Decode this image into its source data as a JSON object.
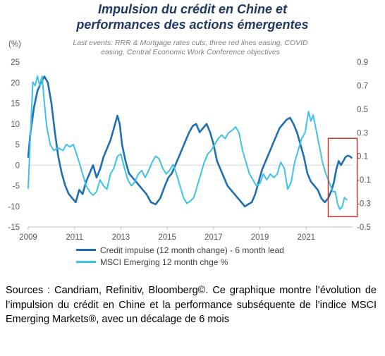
{
  "chart_data": {
    "type": "line",
    "title": [
      "Impulsion du crédit en Chine et",
      "performances des actions émergentes"
    ],
    "subtitle": [
      "Last events: RRR & Mortgage rates cuts, three red lines easing, COVID",
      "easing, Central Economic Work Conference objectives"
    ],
    "y_unit_label": "(%)",
    "ylim_left": [
      -15,
      25
    ],
    "yticks_left": [
      "25",
      "20",
      "15",
      "10",
      "5",
      "0",
      "-5",
      "-10",
      "-15"
    ],
    "ylim_right": [
      -0.5,
      0.9
    ],
    "yticks_right": [
      "0.9",
      "0.7",
      "0.5",
      "0.3",
      "0.1",
      "-0.1",
      "-0.3",
      "-0.5"
    ],
    "xlim": [
      2009,
      2023
    ],
    "xticks": [
      "2009",
      "2011",
      "2013",
      "2015",
      "2017",
      "2019",
      "2021"
    ],
    "grid": false,
    "zero_line": true,
    "highlight_box": {
      "x0": 2021.95,
      "x1": 2023.2,
      "y0_left": -12.5,
      "y1_left": 6.5,
      "color": "#c0392b"
    },
    "series": [
      {
        "name": "Credit impulse (12 month change) - 6 month lead",
        "axis": "left",
        "color": "#1f6fb2",
        "points": [
          [
            2009.0,
            2
          ],
          [
            2009.1,
            8
          ],
          [
            2009.25,
            14
          ],
          [
            2009.4,
            18
          ],
          [
            2009.55,
            20
          ],
          [
            2009.7,
            21.5
          ],
          [
            2009.85,
            20
          ],
          [
            2010.0,
            15
          ],
          [
            2010.15,
            8
          ],
          [
            2010.3,
            2
          ],
          [
            2010.45,
            -2
          ],
          [
            2010.6,
            -5
          ],
          [
            2010.75,
            -7
          ],
          [
            2010.9,
            -8
          ],
          [
            2011.05,
            -9
          ],
          [
            2011.2,
            -6
          ],
          [
            2011.35,
            -7
          ],
          [
            2011.5,
            -4
          ],
          [
            2011.65,
            -2
          ],
          [
            2011.8,
            0
          ],
          [
            2011.95,
            -3
          ],
          [
            2012.1,
            -1
          ],
          [
            2012.25,
            2
          ],
          [
            2012.4,
            4
          ],
          [
            2012.55,
            6
          ],
          [
            2012.7,
            9
          ],
          [
            2012.85,
            12
          ],
          [
            2012.95,
            10
          ],
          [
            2013.05,
            5
          ],
          [
            2013.2,
            1
          ],
          [
            2013.35,
            -2
          ],
          [
            2013.5,
            -3
          ],
          [
            2013.65,
            -4
          ],
          [
            2013.8,
            -5
          ],
          [
            2013.95,
            -6
          ],
          [
            2014.1,
            -7
          ],
          [
            2014.3,
            -9
          ],
          [
            2014.5,
            -9.5
          ],
          [
            2014.7,
            -8
          ],
          [
            2014.9,
            -5
          ],
          [
            2015.05,
            -3
          ],
          [
            2015.2,
            -2
          ],
          [
            2015.35,
            0
          ],
          [
            2015.5,
            2
          ],
          [
            2015.65,
            4
          ],
          [
            2015.8,
            6
          ],
          [
            2015.95,
            8
          ],
          [
            2016.1,
            9.5
          ],
          [
            2016.25,
            10
          ],
          [
            2016.4,
            8
          ],
          [
            2016.55,
            9
          ],
          [
            2016.7,
            10
          ],
          [
            2016.85,
            8
          ],
          [
            2017.0,
            5
          ],
          [
            2017.15,
            1
          ],
          [
            2017.3,
            -1
          ],
          [
            2017.45,
            -3
          ],
          [
            2017.6,
            -5
          ],
          [
            2017.75,
            -6
          ],
          [
            2017.9,
            -7
          ],
          [
            2018.05,
            -8
          ],
          [
            2018.2,
            -9
          ],
          [
            2018.35,
            -10
          ],
          [
            2018.5,
            -9.5
          ],
          [
            2018.65,
            -9
          ],
          [
            2018.8,
            -7
          ],
          [
            2018.95,
            -4
          ],
          [
            2019.1,
            -1
          ],
          [
            2019.25,
            1
          ],
          [
            2019.4,
            3
          ],
          [
            2019.55,
            5
          ],
          [
            2019.7,
            7
          ],
          [
            2019.85,
            9
          ],
          [
            2020.0,
            10
          ],
          [
            2020.15,
            11
          ],
          [
            2020.3,
            11.5
          ],
          [
            2020.45,
            10
          ],
          [
            2020.6,
            8
          ],
          [
            2020.75,
            5
          ],
          [
            2020.9,
            2
          ],
          [
            2021.05,
            -2
          ],
          [
            2021.2,
            -4
          ],
          [
            2021.35,
            -5
          ],
          [
            2021.5,
            -6
          ],
          [
            2021.65,
            -8
          ],
          [
            2021.8,
            -9
          ],
          [
            2021.95,
            -8
          ],
          [
            2022.1,
            -6
          ],
          [
            2022.2,
            -4
          ],
          [
            2022.3,
            -1
          ],
          [
            2022.4,
            1
          ],
          [
            2022.5,
            0
          ],
          [
            2022.6,
            1
          ],
          [
            2022.7,
            2
          ],
          [
            2022.8,
            2.3
          ],
          [
            2022.9,
            2.1
          ],
          [
            2022.95,
            1.8
          ]
        ]
      },
      {
        "name": "MSCI Emerging 12 month chge %",
        "axis": "right",
        "color": "#3ec1ea",
        "points": [
          [
            2009.0,
            -0.17
          ],
          [
            2009.1,
            0.3
          ],
          [
            2009.2,
            0.73
          ],
          [
            2009.3,
            0.7
          ],
          [
            2009.4,
            0.78
          ],
          [
            2009.5,
            0.7
          ],
          [
            2009.6,
            0.78
          ],
          [
            2009.7,
            0.55
          ],
          [
            2009.8,
            0.35
          ],
          [
            2009.95,
            0.2
          ],
          [
            2010.1,
            0.15
          ],
          [
            2010.3,
            0.17
          ],
          [
            2010.5,
            0.15
          ],
          [
            2010.65,
            0.2
          ],
          [
            2010.8,
            0.18
          ],
          [
            2010.95,
            0.2
          ],
          [
            2011.05,
            0.14
          ],
          [
            2011.2,
            0.05
          ],
          [
            2011.35,
            -0.05
          ],
          [
            2011.5,
            -0.15
          ],
          [
            2011.65,
            -0.2
          ],
          [
            2011.8,
            -0.23
          ],
          [
            2011.95,
            -0.2
          ],
          [
            2012.1,
            -0.1
          ],
          [
            2012.25,
            -0.15
          ],
          [
            2012.4,
            -0.18
          ],
          [
            2012.55,
            -0.05
          ],
          [
            2012.7,
            0.0
          ],
          [
            2012.85,
            0.1
          ],
          [
            2013.0,
            0.12
          ],
          [
            2013.15,
            0.0
          ],
          [
            2013.3,
            -0.1
          ],
          [
            2013.45,
            -0.15
          ],
          [
            2013.6,
            -0.12
          ],
          [
            2013.75,
            -0.05
          ],
          [
            2013.9,
            -0.02
          ],
          [
            2014.05,
            -0.08
          ],
          [
            2014.2,
            -0.02
          ],
          [
            2014.35,
            0.05
          ],
          [
            2014.5,
            0.1
          ],
          [
            2014.65,
            0.08
          ],
          [
            2014.8,
            0.0
          ],
          [
            2014.95,
            -0.05
          ],
          [
            2015.1,
            -0.02
          ],
          [
            2015.25,
            0.03
          ],
          [
            2015.4,
            -0.05
          ],
          [
            2015.55,
            -0.15
          ],
          [
            2015.7,
            -0.25
          ],
          [
            2015.85,
            -0.3
          ],
          [
            2016.0,
            -0.28
          ],
          [
            2016.15,
            -0.25
          ],
          [
            2016.3,
            -0.15
          ],
          [
            2016.45,
            -0.05
          ],
          [
            2016.6,
            0.05
          ],
          [
            2016.75,
            0.12
          ],
          [
            2016.9,
            0.15
          ],
          [
            2017.05,
            0.2
          ],
          [
            2017.2,
            0.25
          ],
          [
            2017.35,
            0.28
          ],
          [
            2017.5,
            0.25
          ],
          [
            2017.65,
            0.3
          ],
          [
            2017.8,
            0.32
          ],
          [
            2017.95,
            0.35
          ],
          [
            2018.1,
            0.3
          ],
          [
            2018.25,
            0.15
          ],
          [
            2018.4,
            0.05
          ],
          [
            2018.55,
            -0.05
          ],
          [
            2018.7,
            -0.1
          ],
          [
            2018.85,
            -0.15
          ],
          [
            2019.0,
            -0.13
          ],
          [
            2019.15,
            -0.05
          ],
          [
            2019.3,
            -0.1
          ],
          [
            2019.45,
            -0.05
          ],
          [
            2019.6,
            -0.08
          ],
          [
            2019.75,
            -0.05
          ],
          [
            2019.9,
            0.05
          ],
          [
            2020.05,
            0.0
          ],
          [
            2020.2,
            -0.18
          ],
          [
            2020.35,
            -0.12
          ],
          [
            2020.5,
            0.05
          ],
          [
            2020.65,
            0.15
          ],
          [
            2020.8,
            0.25
          ],
          [
            2020.95,
            0.3
          ],
          [
            2021.1,
            0.48
          ],
          [
            2021.2,
            0.4
          ],
          [
            2021.3,
            0.45
          ],
          [
            2021.4,
            0.35
          ],
          [
            2021.55,
            0.2
          ],
          [
            2021.7,
            0.05
          ],
          [
            2021.85,
            -0.05
          ],
          [
            2021.95,
            -0.1
          ],
          [
            2022.05,
            -0.15
          ],
          [
            2022.15,
            -0.2
          ],
          [
            2022.25,
            -0.2
          ],
          [
            2022.35,
            -0.3
          ],
          [
            2022.45,
            -0.35
          ],
          [
            2022.55,
            -0.33
          ],
          [
            2022.65,
            -0.25
          ],
          [
            2022.75,
            -0.27
          ]
        ]
      }
    ]
  },
  "caption": "Sources : Candriam, Refinitiv, Bloomberg©. Ce graphique montre l’évolution de l’impulsion du crédit en Chine et la performance subséquente de l’indice MSCI Emerging Markets®, avec un décalage de 6 mois"
}
